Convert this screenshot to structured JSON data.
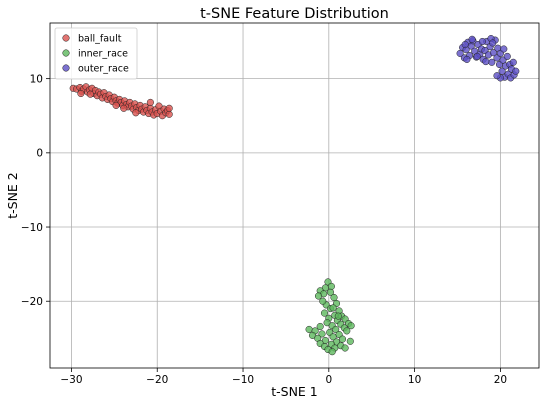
{
  "chart_data": {
    "type": "scatter",
    "title": "t-SNE Feature Distribution",
    "xlabel": "t-SNE 1",
    "ylabel": "t-SNE 2",
    "xlim": [
      -32.5,
      24.5
    ],
    "ylim": [
      -29,
      17.5
    ],
    "xticks": [
      -30,
      -20,
      -10,
      0,
      10,
      20
    ],
    "yticks": [
      -20,
      -10,
      0,
      10
    ],
    "xtick_labels": [
      "−30",
      "−20",
      "−10",
      "0",
      "10",
      "20"
    ],
    "ytick_labels": [
      "−20",
      "−10",
      "0",
      "10"
    ],
    "grid": true,
    "legend_position": "top-left",
    "series": [
      {
        "name": "ball_fault",
        "color": "#d9534f",
        "points": [
          [
            -29.8,
            8.7
          ],
          [
            -29.4,
            8.6
          ],
          [
            -29.0,
            8.8
          ],
          [
            -28.8,
            8.3
          ],
          [
            -28.6,
            8.6
          ],
          [
            -28.3,
            8.9
          ],
          [
            -28.1,
            8.2
          ],
          [
            -27.9,
            8.5
          ],
          [
            -27.6,
            8.7
          ],
          [
            -27.4,
            8.0
          ],
          [
            -27.2,
            8.4
          ],
          [
            -27.0,
            7.7
          ],
          [
            -26.8,
            8.2
          ],
          [
            -26.6,
            7.9
          ],
          [
            -26.4,
            7.4
          ],
          [
            -26.2,
            8.1
          ],
          [
            -26.0,
            7.6
          ],
          [
            -25.8,
            7.2
          ],
          [
            -25.6,
            7.8
          ],
          [
            -25.4,
            7.3
          ],
          [
            -25.2,
            6.9
          ],
          [
            -25.0,
            7.5
          ],
          [
            -24.8,
            7.0
          ],
          [
            -24.6,
            6.7
          ],
          [
            -24.4,
            7.2
          ],
          [
            -24.2,
            6.8
          ],
          [
            -24.0,
            6.4
          ],
          [
            -23.8,
            7.0
          ],
          [
            -23.6,
            6.5
          ],
          [
            -23.4,
            6.2
          ],
          [
            -23.2,
            6.8
          ],
          [
            -23.0,
            6.3
          ],
          [
            -22.8,
            5.9
          ],
          [
            -22.6,
            6.6
          ],
          [
            -22.4,
            6.1
          ],
          [
            -22.2,
            5.7
          ],
          [
            -22.0,
            6.4
          ],
          [
            -21.8,
            5.9
          ],
          [
            -21.6,
            5.5
          ],
          [
            -21.4,
            6.2
          ],
          [
            -21.2,
            5.7
          ],
          [
            -21.0,
            5.3
          ],
          [
            -20.8,
            6.0
          ],
          [
            -20.6,
            5.5
          ],
          [
            -20.4,
            5.1
          ],
          [
            -20.2,
            5.8
          ],
          [
            -20.0,
            5.3
          ],
          [
            -19.8,
            6.3
          ],
          [
            -19.6,
            5.6
          ],
          [
            -19.4,
            5.0
          ],
          [
            -19.2,
            5.9
          ],
          [
            -19.0,
            5.4
          ],
          [
            -18.8,
            5.7
          ],
          [
            -18.6,
            5.2
          ],
          [
            -18.6,
            6.0
          ],
          [
            -20.8,
            6.8
          ],
          [
            -24.8,
            6.4
          ],
          [
            -27.8,
            7.9
          ],
          [
            -28.9,
            8.0
          ],
          [
            -23.9,
            6.0
          ],
          [
            -22.5,
            5.4
          ]
        ]
      },
      {
        "name": "inner_race",
        "color": "#5cb85c",
        "points": [
          [
            -0.1,
            -17.4
          ],
          [
            -0.4,
            -18.2
          ],
          [
            0.3,
            -18.0
          ],
          [
            -1.0,
            -18.6
          ],
          [
            -0.6,
            -19.0
          ],
          [
            0.2,
            -18.8
          ],
          [
            -1.2,
            -19.3
          ],
          [
            0.6,
            -19.5
          ],
          [
            0.9,
            -20.3
          ],
          [
            -0.3,
            -20.5
          ],
          [
            0.2,
            -21.0
          ],
          [
            1.2,
            -21.3
          ],
          [
            -0.5,
            -21.6
          ],
          [
            0.7,
            -21.9
          ],
          [
            1.5,
            -22.0
          ],
          [
            0.0,
            -22.3
          ],
          [
            1.9,
            -22.4
          ],
          [
            1.0,
            -22.6
          ],
          [
            -0.2,
            -22.9
          ],
          [
            2.3,
            -23.0
          ],
          [
            1.4,
            -23.1
          ],
          [
            0.4,
            -23.3
          ],
          [
            2.6,
            -23.3
          ],
          [
            -1.0,
            -23.4
          ],
          [
            1.8,
            -23.6
          ],
          [
            -2.3,
            -23.8
          ],
          [
            0.8,
            -23.8
          ],
          [
            -1.6,
            -24.0
          ],
          [
            2.1,
            -24.0
          ],
          [
            0.1,
            -24.2
          ],
          [
            -0.8,
            -24.4
          ],
          [
            1.2,
            -24.5
          ],
          [
            -1.9,
            -24.6
          ],
          [
            0.5,
            -24.8
          ],
          [
            -1.3,
            -25.0
          ],
          [
            1.6,
            -25.1
          ],
          [
            -0.4,
            -25.3
          ],
          [
            2.5,
            -25.4
          ],
          [
            0.9,
            -25.5
          ],
          [
            -1.0,
            -25.7
          ],
          [
            0.3,
            -25.8
          ],
          [
            1.4,
            -26.0
          ],
          [
            -0.5,
            -26.1
          ],
          [
            1.9,
            -26.3
          ],
          [
            0.7,
            -26.3
          ],
          [
            -0.1,
            -26.5
          ],
          [
            0.4,
            -26.8
          ],
          [
            1.1,
            -22.0
          ],
          [
            -0.7,
            -20.0
          ],
          [
            0.5,
            -20.9
          ]
        ]
      },
      {
        "name": "outer_race",
        "color": "#5b4fc4",
        "points": [
          [
            15.3,
            13.4
          ],
          [
            15.6,
            14.2
          ],
          [
            15.8,
            12.8
          ],
          [
            16.0,
            13.9
          ],
          [
            16.2,
            14.9
          ],
          [
            16.4,
            13.1
          ],
          [
            16.6,
            14.4
          ],
          [
            16.8,
            15.1
          ],
          [
            17.0,
            13.7
          ],
          [
            17.2,
            12.9
          ],
          [
            17.4,
            14.6
          ],
          [
            17.6,
            13.3
          ],
          [
            17.8,
            14.0
          ],
          [
            18.0,
            12.6
          ],
          [
            18.2,
            13.8
          ],
          [
            18.4,
            15.0
          ],
          [
            18.6,
            13.2
          ],
          [
            18.8,
            14.3
          ],
          [
            19.0,
            12.2
          ],
          [
            19.2,
            13.5
          ],
          [
            19.4,
            15.2
          ],
          [
            19.6,
            12.8
          ],
          [
            19.7,
            14.1
          ],
          [
            19.9,
            11.9
          ],
          [
            20.0,
            13.4
          ],
          [
            20.2,
            11.0
          ],
          [
            20.3,
            12.5
          ],
          [
            20.5,
            10.2
          ],
          [
            20.6,
            11.7
          ],
          [
            20.8,
            13.0
          ],
          [
            20.9,
            10.6
          ],
          [
            21.1,
            11.9
          ],
          [
            21.2,
            10.1
          ],
          [
            21.3,
            11.3
          ],
          [
            21.5,
            12.2
          ],
          [
            21.6,
            10.5
          ],
          [
            21.8,
            11.0
          ],
          [
            20.0,
            10.1
          ],
          [
            19.6,
            10.4
          ],
          [
            16.7,
            15.3
          ],
          [
            17.9,
            15.0
          ],
          [
            18.9,
            15.4
          ],
          [
            15.9,
            14.6
          ],
          [
            17.3,
            13.0
          ],
          [
            19.1,
            14.8
          ],
          [
            20.4,
            14.0
          ],
          [
            18.3,
            12.3
          ],
          [
            16.1,
            12.6
          ]
        ]
      }
    ]
  }
}
